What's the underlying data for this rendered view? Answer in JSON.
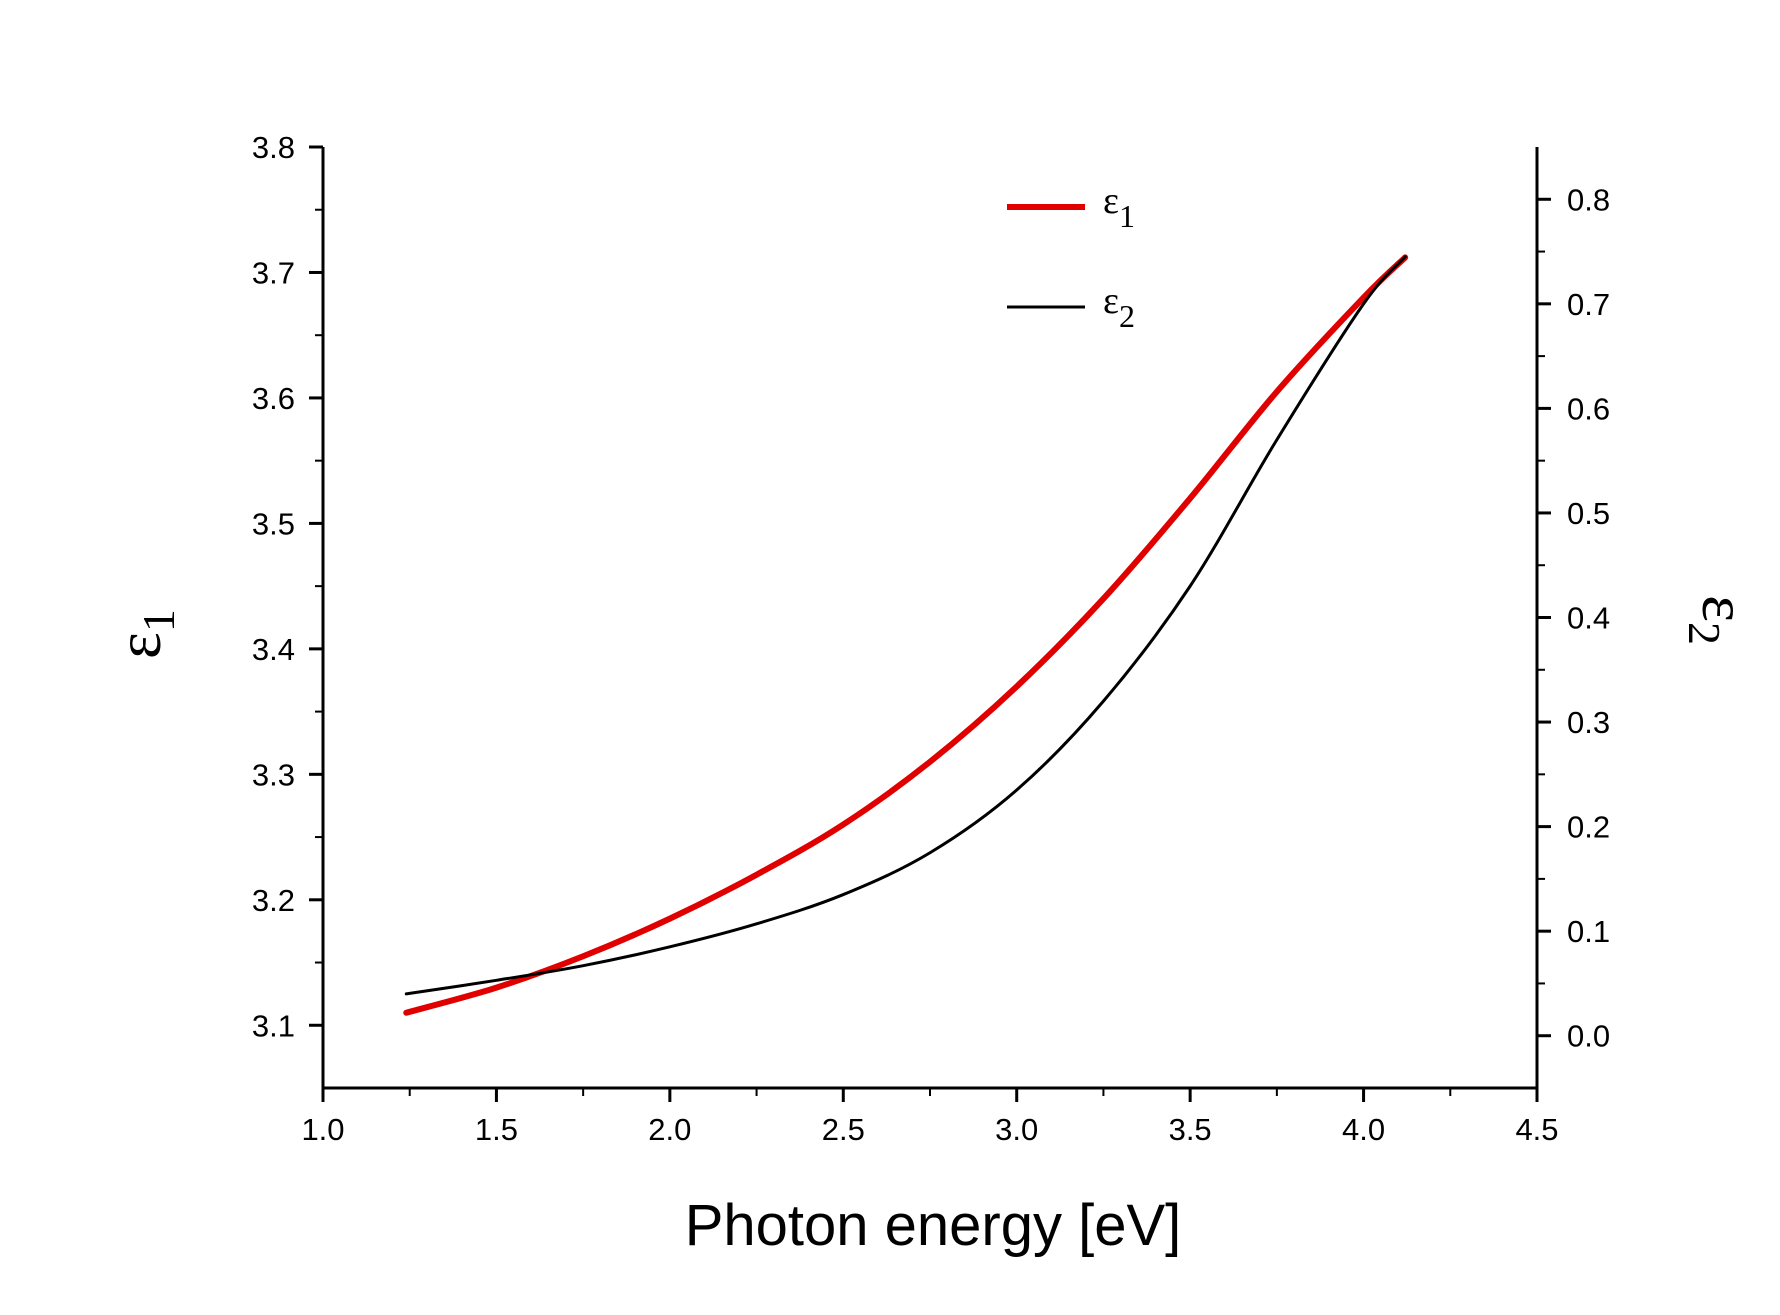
{
  "chart_data": {
    "type": "line",
    "xlabel": "Photon energy [eV]",
    "ylabel_left": {
      "symbol": "ε",
      "subscript": "1"
    },
    "ylabel_right": {
      "symbol": "ε",
      "subscript": "2"
    },
    "xlim": [
      1.0,
      4.5
    ],
    "ylim_left": [
      3.05,
      3.8
    ],
    "ylim_right": [
      -0.05,
      0.85
    ],
    "x_ticks": [
      "1.0",
      "1.5",
      "2.0",
      "2.5",
      "3.0",
      "3.5",
      "4.0",
      "4.5"
    ],
    "y_left_ticks": [
      "3.1",
      "3.2",
      "3.3",
      "3.4",
      "3.5",
      "3.6",
      "3.7",
      "3.8"
    ],
    "y_right_ticks": [
      "0.0",
      "0.1",
      "0.2",
      "0.3",
      "0.4",
      "0.5",
      "0.6",
      "0.7",
      "0.8"
    ],
    "legend_position": "top-right",
    "series": [
      {
        "name": "ε1",
        "legend_symbol": "ε",
        "legend_subscript": "1",
        "axis": "left",
        "color": "#e00000",
        "x": [
          1.24,
          1.5,
          1.75,
          2.0,
          2.25,
          2.5,
          2.75,
          3.0,
          3.25,
          3.5,
          3.75,
          4.0,
          4.12
        ],
        "y": [
          3.11,
          3.13,
          3.155,
          3.185,
          3.22,
          3.26,
          3.31,
          3.37,
          3.44,
          3.52,
          3.605,
          3.68,
          3.712
        ]
      },
      {
        "name": "ε2",
        "legend_symbol": "ε",
        "legend_subscript": "2",
        "axis": "right",
        "color": "#000000",
        "x": [
          1.24,
          1.5,
          1.75,
          2.0,
          2.25,
          2.5,
          2.75,
          3.0,
          3.25,
          3.5,
          3.75,
          4.0,
          4.12
        ],
        "y": [
          0.04,
          0.053,
          0.067,
          0.085,
          0.107,
          0.135,
          0.175,
          0.235,
          0.32,
          0.43,
          0.57,
          0.7,
          0.745
        ]
      }
    ]
  }
}
